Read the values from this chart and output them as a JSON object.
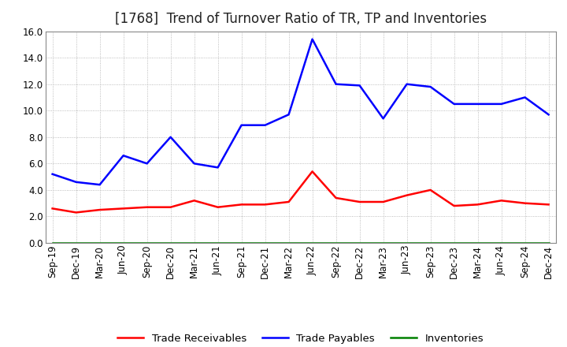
{
  "title": "[1768]  Trend of Turnover Ratio of TR, TP and Inventories",
  "x_labels": [
    "Sep-19",
    "Dec-19",
    "Mar-20",
    "Jun-20",
    "Sep-20",
    "Dec-20",
    "Mar-21",
    "Jun-21",
    "Sep-21",
    "Dec-21",
    "Mar-22",
    "Jun-22",
    "Sep-22",
    "Dec-22",
    "Mar-23",
    "Jun-23",
    "Sep-23",
    "Dec-23",
    "Mar-24",
    "Jun-24",
    "Sep-24",
    "Dec-24"
  ],
  "trade_receivables": [
    2.6,
    2.3,
    2.5,
    2.6,
    2.7,
    2.7,
    3.2,
    2.7,
    2.9,
    2.9,
    3.1,
    5.4,
    3.4,
    3.1,
    3.1,
    3.6,
    4.0,
    2.8,
    2.9,
    3.2,
    3.0,
    2.9
  ],
  "trade_payables": [
    5.2,
    4.6,
    4.4,
    6.6,
    6.0,
    8.0,
    6.0,
    5.7,
    8.9,
    8.9,
    9.7,
    15.4,
    12.0,
    11.9,
    9.4,
    12.0,
    11.8,
    10.5,
    10.5,
    10.5,
    11.0,
    9.7
  ],
  "inventories": [
    0.0,
    0.0,
    0.0,
    0.0,
    0.0,
    0.0,
    0.0,
    0.0,
    0.0,
    0.0,
    0.0,
    0.0,
    0.0,
    0.0,
    0.0,
    0.0,
    0.0,
    0.0,
    0.0,
    0.0,
    0.0,
    0.0
  ],
  "tr_color": "#ff0000",
  "tp_color": "#0000ff",
  "inv_color": "#008000",
  "ylim": [
    0.0,
    16.0
  ],
  "ytick_vals": [
    0.0,
    2.0,
    4.0,
    6.0,
    8.0,
    10.0,
    12.0,
    14.0,
    16.0
  ],
  "ytick_labels": [
    "0.0",
    "2.0",
    "4.0",
    "6.0",
    "8.0",
    "10.0",
    "12.0",
    "14.0",
    "16.0"
  ],
  "background_color": "#ffffff",
  "grid_color": "#aaaaaa",
  "title_fontsize": 12,
  "tick_fontsize": 8.5,
  "legend_labels": [
    "Trade Receivables",
    "Trade Payables",
    "Inventories"
  ],
  "legend_fontsize": 9.5
}
